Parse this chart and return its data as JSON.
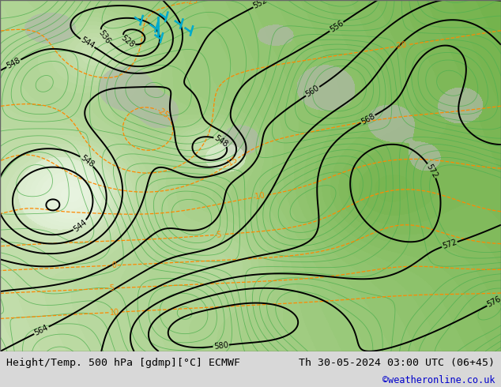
{
  "title_left": "Height/Temp. 500 hPa [gdmp][°C] ECMWF",
  "title_right": "Th 30-05-2024 03:00 UTC (06+45)",
  "credit": "©weatheronline.co.uk",
  "bg_light_green": "#c8e8b0",
  "bg_mid_green": "#a8d890",
  "bg_dark_green": "#88c870",
  "bg_gray": "#b0b8a8",
  "bg_white": "#f0f4f0",
  "footer_bg": "#d8d8d8",
  "font_size_title": 9.5,
  "font_size_credit": 8.5
}
